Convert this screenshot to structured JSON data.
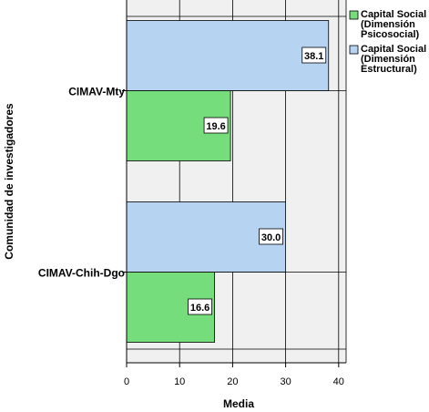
{
  "chart_data": {
    "type": "bar",
    "orientation": "horizontal",
    "categories": [
      "CIMAV-Mty",
      "CIMAV-Chih-Dgo"
    ],
    "series": [
      {
        "name": "Capital Social (Dimensión Psicosocial)",
        "legend_lines": [
          "Capital Social",
          "(Dimensión",
          "Psicosocial)"
        ],
        "color": "#76dd7c",
        "values": [
          19.6,
          16.6
        ]
      },
      {
        "name": "Capital Social (Dimensión Estructural)",
        "legend_lines": [
          "Capital Social",
          "(Dimensión",
          "Estructural)"
        ],
        "color": "#b7d3f2",
        "values": [
          38.1,
          30.0
        ]
      }
    ],
    "data_labels": [
      [
        "19.6",
        "16.6"
      ],
      [
        "38.1",
        "30.0"
      ]
    ],
    "xlabel": "Media",
    "ylabel": "Comunidad de investigadores",
    "xlim": [
      0,
      40
    ],
    "xticks": [
      0,
      10,
      20,
      30,
      40
    ],
    "grid": true,
    "plot_background": "#f0f0f0",
    "legend_position": "right"
  }
}
